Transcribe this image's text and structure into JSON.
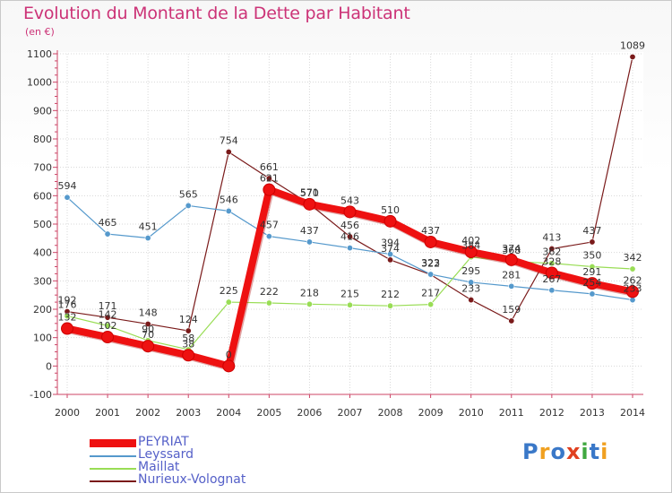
{
  "title": "Evolution du Montant de la Dette par Habitant",
  "subtitle": "(en €)",
  "logo": {
    "text": "Proxiti",
    "letters": [
      {
        "ch": "P",
        "color": "#3a78c8"
      },
      {
        "ch": "r",
        "color": "#f0a020"
      },
      {
        "ch": "o",
        "color": "#3a78c8"
      },
      {
        "ch": "x",
        "color": "#e04020"
      },
      {
        "ch": "i",
        "color": "#40a840"
      },
      {
        "ch": "t",
        "color": "#3a78c8"
      },
      {
        "ch": "i",
        "color": "#f0a020"
      }
    ]
  },
  "chart_data": {
    "type": "line",
    "title": "Evolution du Montant de la Dette par Habitant",
    "ylabel": "(en €)",
    "xlabel": "",
    "ylim": [
      -100,
      1100
    ],
    "yticks": [
      -100,
      0,
      100,
      200,
      300,
      400,
      500,
      600,
      700,
      800,
      900,
      1000,
      1100
    ],
    "grid": true,
    "categories": [
      "2000",
      "2001",
      "2002",
      "2003",
      "2004",
      "2005",
      "2006",
      "2007",
      "2008",
      "2009",
      "2010",
      "2011",
      "2012",
      "2013",
      "2014"
    ],
    "series": [
      {
        "name": "PEYRIAT",
        "color": "#ee1111",
        "values": [
          132,
          102,
          70,
          38,
          0,
          621,
          570,
          543,
          510,
          437,
          402,
          374,
          328,
          291,
          262
        ]
      },
      {
        "name": "Leyssard",
        "color": "#5599cc",
        "values": [
          594,
          465,
          451,
          565,
          546,
          457,
          437,
          416,
          394,
          323,
          295,
          281,
          267,
          254,
          233
        ]
      },
      {
        "name": "Maillat",
        "color": "#99dd55",
        "values": [
          176,
          142,
          90,
          58,
          225,
          222,
          218,
          215,
          212,
          217,
          384,
          368,
          362,
          350,
          342
        ]
      },
      {
        "name": "Nurieux-Volognat",
        "color": "#7a1a1a",
        "values": [
          192,
          171,
          148,
          124,
          754,
          661,
          571,
          456,
          374,
          322,
          233,
          159,
          413,
          437,
          1089
        ]
      }
    ]
  }
}
